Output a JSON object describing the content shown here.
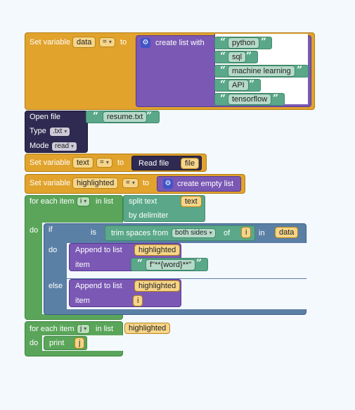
{
  "block1": {
    "set_variable": "Set variable",
    "var_name": "data",
    "op": "=",
    "to": "to",
    "create_list_with": "create list with",
    "items": [
      "python",
      "sql",
      "machine learning",
      "API",
      "tensorflow"
    ]
  },
  "block2": {
    "open_file": "Open file",
    "filename": "resume.txt",
    "type_label": "Type",
    "type_value": ".txt",
    "mode_label": "Mode",
    "mode_value": "read"
  },
  "block3": {
    "set_variable": "Set variable",
    "var_name": "text",
    "op": "=",
    "to": "to",
    "read_file": "Read file",
    "arg": "file"
  },
  "block4": {
    "set_variable": "Set variable",
    "var_name": "highlighted",
    "op": "=",
    "to": "to",
    "create_empty_list": "create empty list"
  },
  "loop1": {
    "for_each_item": "for each item",
    "var": "i",
    "in_list": "in list",
    "split_text": "split text",
    "split_arg": "text",
    "by_delimiter": "by delimiter",
    "do": "do",
    "if_label": "if",
    "is_label": "is",
    "trim_spaces_from": "trim spaces from",
    "both_sides": "both sides",
    "of_label": "of",
    "trim_arg": "i",
    "in_label": "in",
    "in_arg": "data",
    "if_do": "do",
    "append1_label": "Append to list",
    "append1_list": "highlighted",
    "item1_label": "item",
    "item1_value": "f\"**{word}**\"",
    "else_label": "else",
    "append2_label": "Append to list",
    "append2_list": "highlighted",
    "item2_label": "item",
    "item2_value": "i"
  },
  "loop2": {
    "for_each_item": "for each item",
    "var": "j",
    "in_list": "in list",
    "list": "highlighted",
    "do": "do",
    "print": "print",
    "print_arg": "j"
  },
  "colors": {
    "variable_orange": "#e1a32c",
    "list_purple": "#7a58b4",
    "text_green": "#5aa889",
    "file_dark": "#2f2a51",
    "loop_green": "#5aa55a",
    "logic_blue": "#5b80a5",
    "canvas": "#f4f9fe"
  }
}
